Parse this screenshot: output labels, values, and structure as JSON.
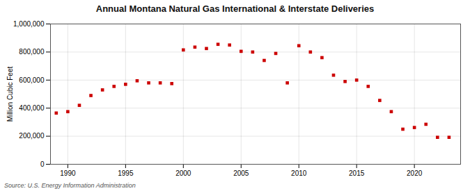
{
  "chart_data": {
    "type": "scatter",
    "title": "Annual Montana Natural Gas International & Interstate Deliveries",
    "ylabel": "Million Cubic Feet",
    "source": "Source: U.S. Energy Information Administration",
    "x": [
      1989,
      1990,
      1991,
      1992,
      1993,
      1994,
      1995,
      1996,
      1997,
      1998,
      1999,
      2000,
      2001,
      2002,
      2003,
      2004,
      2005,
      2006,
      2007,
      2008,
      2009,
      2010,
      2011,
      2012,
      2013,
      2014,
      2015,
      2016,
      2017,
      2018,
      2019,
      2020,
      2021,
      2022,
      2023
    ],
    "values": [
      365000,
      375000,
      420000,
      490000,
      530000,
      555000,
      570000,
      595000,
      580000,
      580000,
      575000,
      815000,
      835000,
      825000,
      855000,
      850000,
      805000,
      800000,
      740000,
      790000,
      580000,
      845000,
      800000,
      760000,
      635000,
      590000,
      600000,
      555000,
      455000,
      375000,
      250000,
      262000,
      285000,
      192000,
      192000
    ],
    "color": "#cc0000",
    "marker": "square",
    "xlim": [
      1988.5,
      2024
    ],
    "xticks": [
      1990,
      1995,
      2000,
      2005,
      2010,
      2015,
      2020
    ],
    "ylim": [
      0,
      1000000
    ],
    "yticks": [
      0,
      {
        "value": 200000,
        "label": "200,000"
      },
      {
        "value": 400000,
        "label": "400,000"
      },
      {
        "value": 600000,
        "label": "600,000"
      },
      {
        "value": 800000,
        "label": "800,000"
      },
      {
        "value": 1000000,
        "label": "1,000,000"
      }
    ],
    "grid": true
  }
}
